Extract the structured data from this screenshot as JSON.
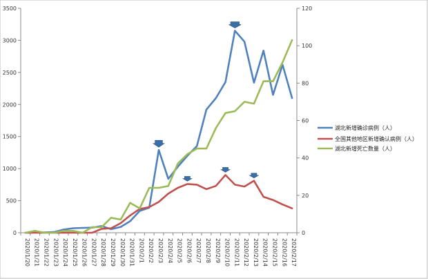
{
  "chart_data": {
    "type": "line",
    "title": "",
    "xlabel": "",
    "ylabel_left": "",
    "ylabel_right": "",
    "ylim_left": [
      0,
      3500
    ],
    "ylim_right": [
      0,
      120
    ],
    "yticks_left": [
      "0",
      "500",
      "1000",
      "1500",
      "2000",
      "2500",
      "3000",
      "3500"
    ],
    "yticks_right": [
      "0",
      "20",
      "40",
      "60",
      "80",
      "100",
      "120"
    ],
    "grid": false,
    "legend_position": "right",
    "series": [
      {
        "name": "湖北新增确诊病例（人）",
        "axis": "left",
        "color": "#4f81bd",
        "values": [
          0,
          5,
          5,
          10,
          50,
          70,
          75,
          80,
          105,
          55,
          90,
          180,
          340,
          390,
          1290,
          840,
          1030,
          1200,
          1350,
          1920,
          2100,
          2350,
          3150,
          2980,
          2340,
          2840,
          2150,
          2620,
          2100
        ]
      },
      {
        "name": "全国其他地区新增确认病例（人）",
        "axis": "left",
        "color": "#c0504d",
        "values": [
          0,
          0,
          0,
          0,
          0,
          0,
          0,
          0,
          60,
          70,
          150,
          270,
          370,
          400,
          480,
          610,
          700,
          760,
          750,
          680,
          730,
          900,
          750,
          720,
          810,
          560,
          510,
          440,
          380
        ]
      },
      {
        "name": "湖北新增死亡数量（人）",
        "axis": "right",
        "color": "#9bbb59",
        "values": [
          0,
          1,
          0,
          0,
          1,
          1,
          0,
          3,
          3,
          8,
          7,
          16,
          13,
          24,
          24,
          25,
          37,
          42,
          45,
          45,
          56,
          64,
          65,
          70,
          69,
          81,
          81,
          91,
          103
        ]
      }
    ],
    "x_labels": [
      "2020/1/20",
      "2020/1/21",
      "2020/1/22",
      "2020/1/23",
      "2020/1/24",
      "2020/1/25",
      "2020/1/26",
      "2020/1/27",
      "2020/1/28",
      "2020/1/29",
      "2020/1/30",
      "2020/1/31",
      "2020/2/1",
      "2020/2/2",
      "2020/2/3",
      "2020/2/4",
      "2020/2/5",
      "2020/2/6",
      "2020/2/7",
      "2020/2/8",
      "2020/2/9",
      "2020/2/10",
      "2020/2/11",
      "2020/2/12",
      "2020/2/13",
      "2020/2/14",
      "2020/2/15",
      "2020/2/16",
      "2020/2/17"
    ]
  }
}
